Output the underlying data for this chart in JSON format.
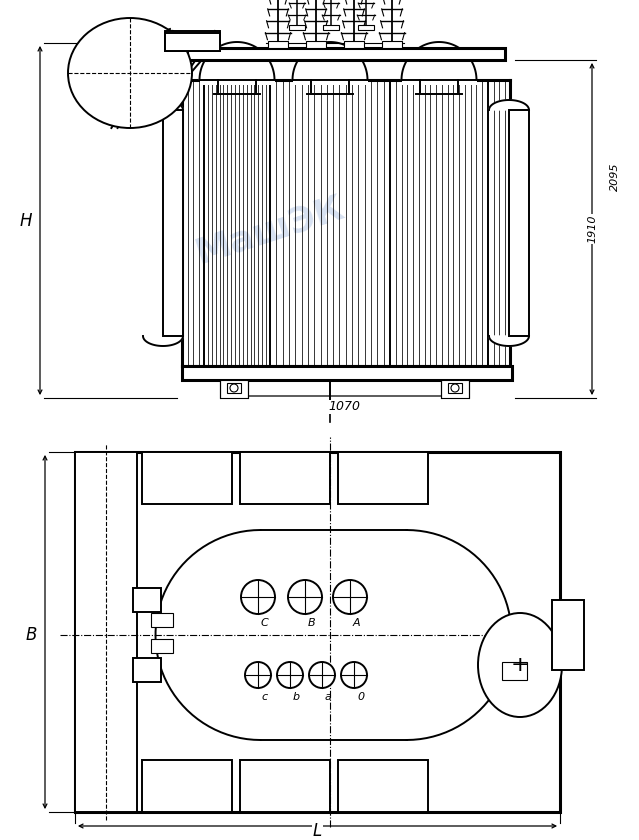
{
  "bg": "#ffffff",
  "lc": "c",
  "figsize": [
    6.39,
    8.4
  ],
  "dpi": 100,
  "lw_thick": 2.2,
  "lw_med": 1.4,
  "lw_thin": 0.8,
  "lw_fin": 0.55,
  "label_H": "H",
  "label_B": "B",
  "label_L": "L",
  "dim_1910": "1910",
  "dim_2095": "2095",
  "dim_1070": "1070",
  "lC": "C",
  "lBB": "B",
  "lA": "A",
  "lb": "b",
  "la": "a",
  "l0": "0"
}
